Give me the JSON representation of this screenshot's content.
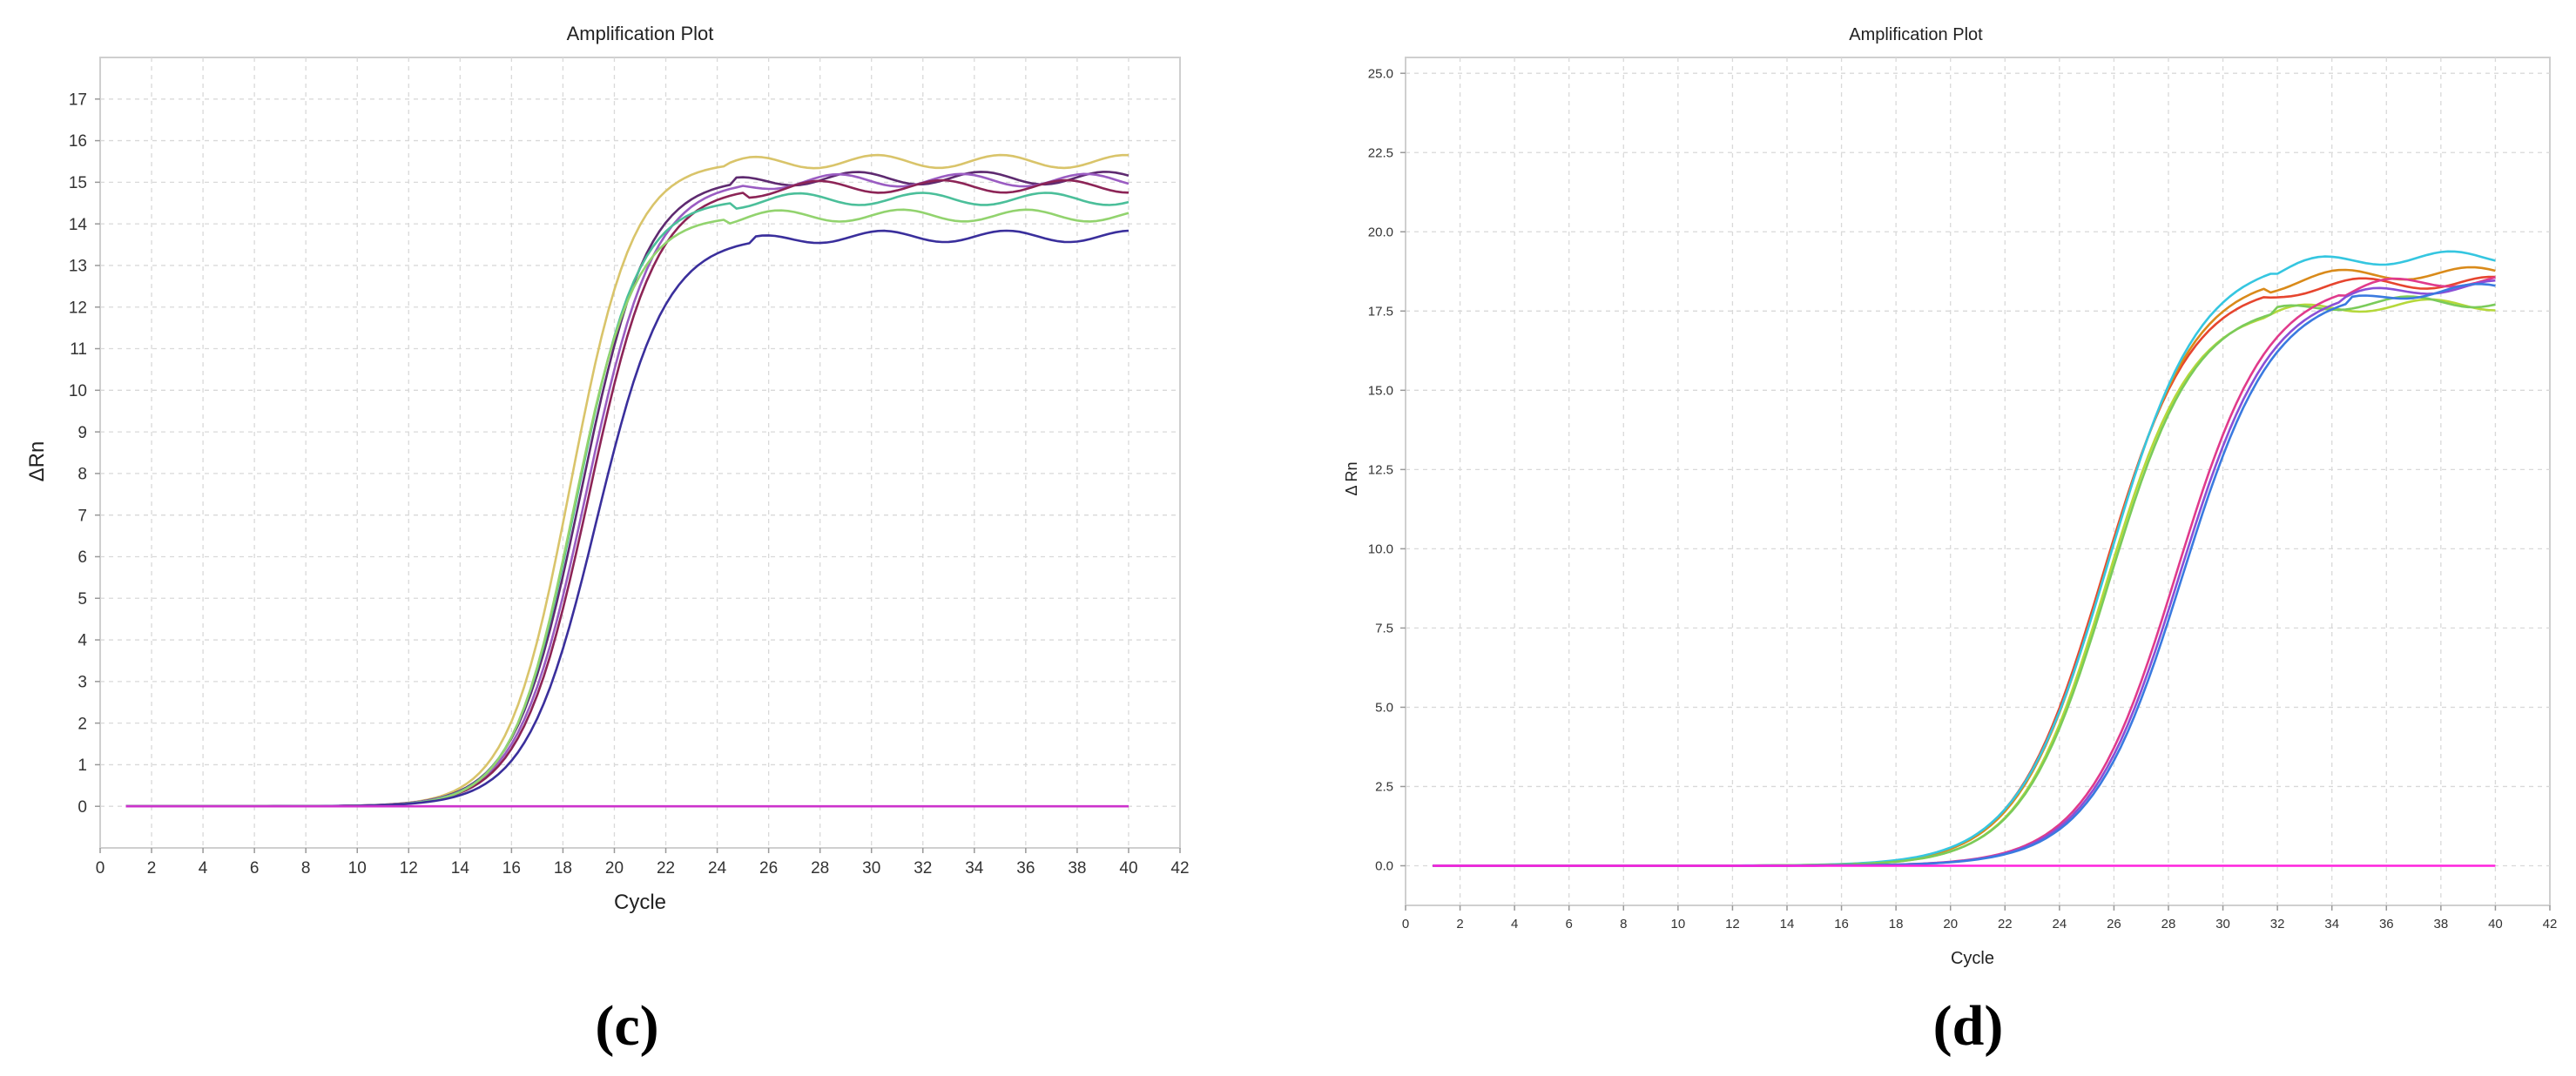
{
  "chart_data": [
    {
      "type": "line",
      "panel_label": "(c)",
      "title": "Amplification Plot",
      "xlabel": "Cycle",
      "ylabel": "ΔRn",
      "xlim": [
        0,
        42
      ],
      "ylim": [
        -1,
        18
      ],
      "xticks": [
        "0",
        "2",
        "4",
        "6",
        "8",
        "10",
        "12",
        "14",
        "16",
        "18",
        "20",
        "22",
        "24",
        "26",
        "28",
        "30",
        "32",
        "34",
        "36",
        "38",
        "40",
        "42"
      ],
      "yticks": [
        "0",
        "1",
        "2",
        "3",
        "4",
        "5",
        "6",
        "7",
        "8",
        "9",
        "10",
        "11",
        "12",
        "13",
        "14",
        "15",
        "16",
        "17"
      ],
      "grid": true,
      "series": [
        {
          "color": "#d9c46a",
          "midpoint": 18.3,
          "slope": 0.82,
          "plateau": 15.5
        },
        {
          "color": "#5e2a70",
          "midpoint": 18.7,
          "slope": 0.78,
          "plateau": 15.1
        },
        {
          "color": "#9a5cc2",
          "midpoint": 18.9,
          "slope": 0.76,
          "plateau": 15.05
        },
        {
          "color": "#8c2456",
          "midpoint": 19.0,
          "slope": 0.76,
          "plateau": 14.9
        },
        {
          "color": "#4bbf9a",
          "midpoint": 18.5,
          "slope": 0.82,
          "plateau": 14.6
        },
        {
          "color": "#92d36e",
          "midpoint": 18.4,
          "slope": 0.84,
          "plateau": 14.2
        },
        {
          "color": "#3a2f9c",
          "midpoint": 19.3,
          "slope": 0.74,
          "plateau": 13.7
        },
        {
          "color": "#cc33cc",
          "flat": true,
          "plateau": 0
        }
      ]
    },
    {
      "type": "line",
      "panel_label": "(d)",
      "title": "Amplification Plot",
      "xlabel": "Cycle",
      "ylabel": "Δ Rn",
      "xlim": [
        0,
        42
      ],
      "ylim": [
        -1.25,
        25.5
      ],
      "xticks": [
        "0",
        "2",
        "4",
        "6",
        "8",
        "10",
        "12",
        "14",
        "16",
        "18",
        "20",
        "22",
        "24",
        "26",
        "28",
        "30",
        "32",
        "34",
        "36",
        "38",
        "40",
        "42"
      ],
      "yticks": [
        "0.0",
        "2.5",
        "5.0",
        "7.5",
        "10.0",
        "12.5",
        "15.0",
        "17.5",
        "20.0",
        "22.5",
        "25.0"
      ],
      "grid": true,
      "series": [
        {
          "color": "#e6452e",
          "midpoint": 25.6,
          "slope": 0.62,
          "plateau": 18.4
        },
        {
          "color": "#d98a1a",
          "midpoint": 25.7,
          "slope": 0.62,
          "plateau": 18.7
        },
        {
          "color": "#35c6e0",
          "midpoint": 25.8,
          "slope": 0.6,
          "plateau": 19.2
        },
        {
          "color": "#b5d83a",
          "midpoint": 25.7,
          "slope": 0.64,
          "plateau": 17.7
        },
        {
          "color": "#7acb5a",
          "midpoint": 25.8,
          "slope": 0.63,
          "plateau": 17.8
        },
        {
          "color": "#e03a8c",
          "midpoint": 28.3,
          "slope": 0.6,
          "plateau": 18.5
        },
        {
          "color": "#8a4fd6",
          "midpoint": 28.4,
          "slope": 0.6,
          "plateau": 18.3
        },
        {
          "color": "#3a7ae0",
          "midpoint": 28.5,
          "slope": 0.6,
          "plateau": 18.2
        },
        {
          "color": "#ff22dd",
          "flat": true,
          "plateau": 0
        }
      ]
    }
  ]
}
